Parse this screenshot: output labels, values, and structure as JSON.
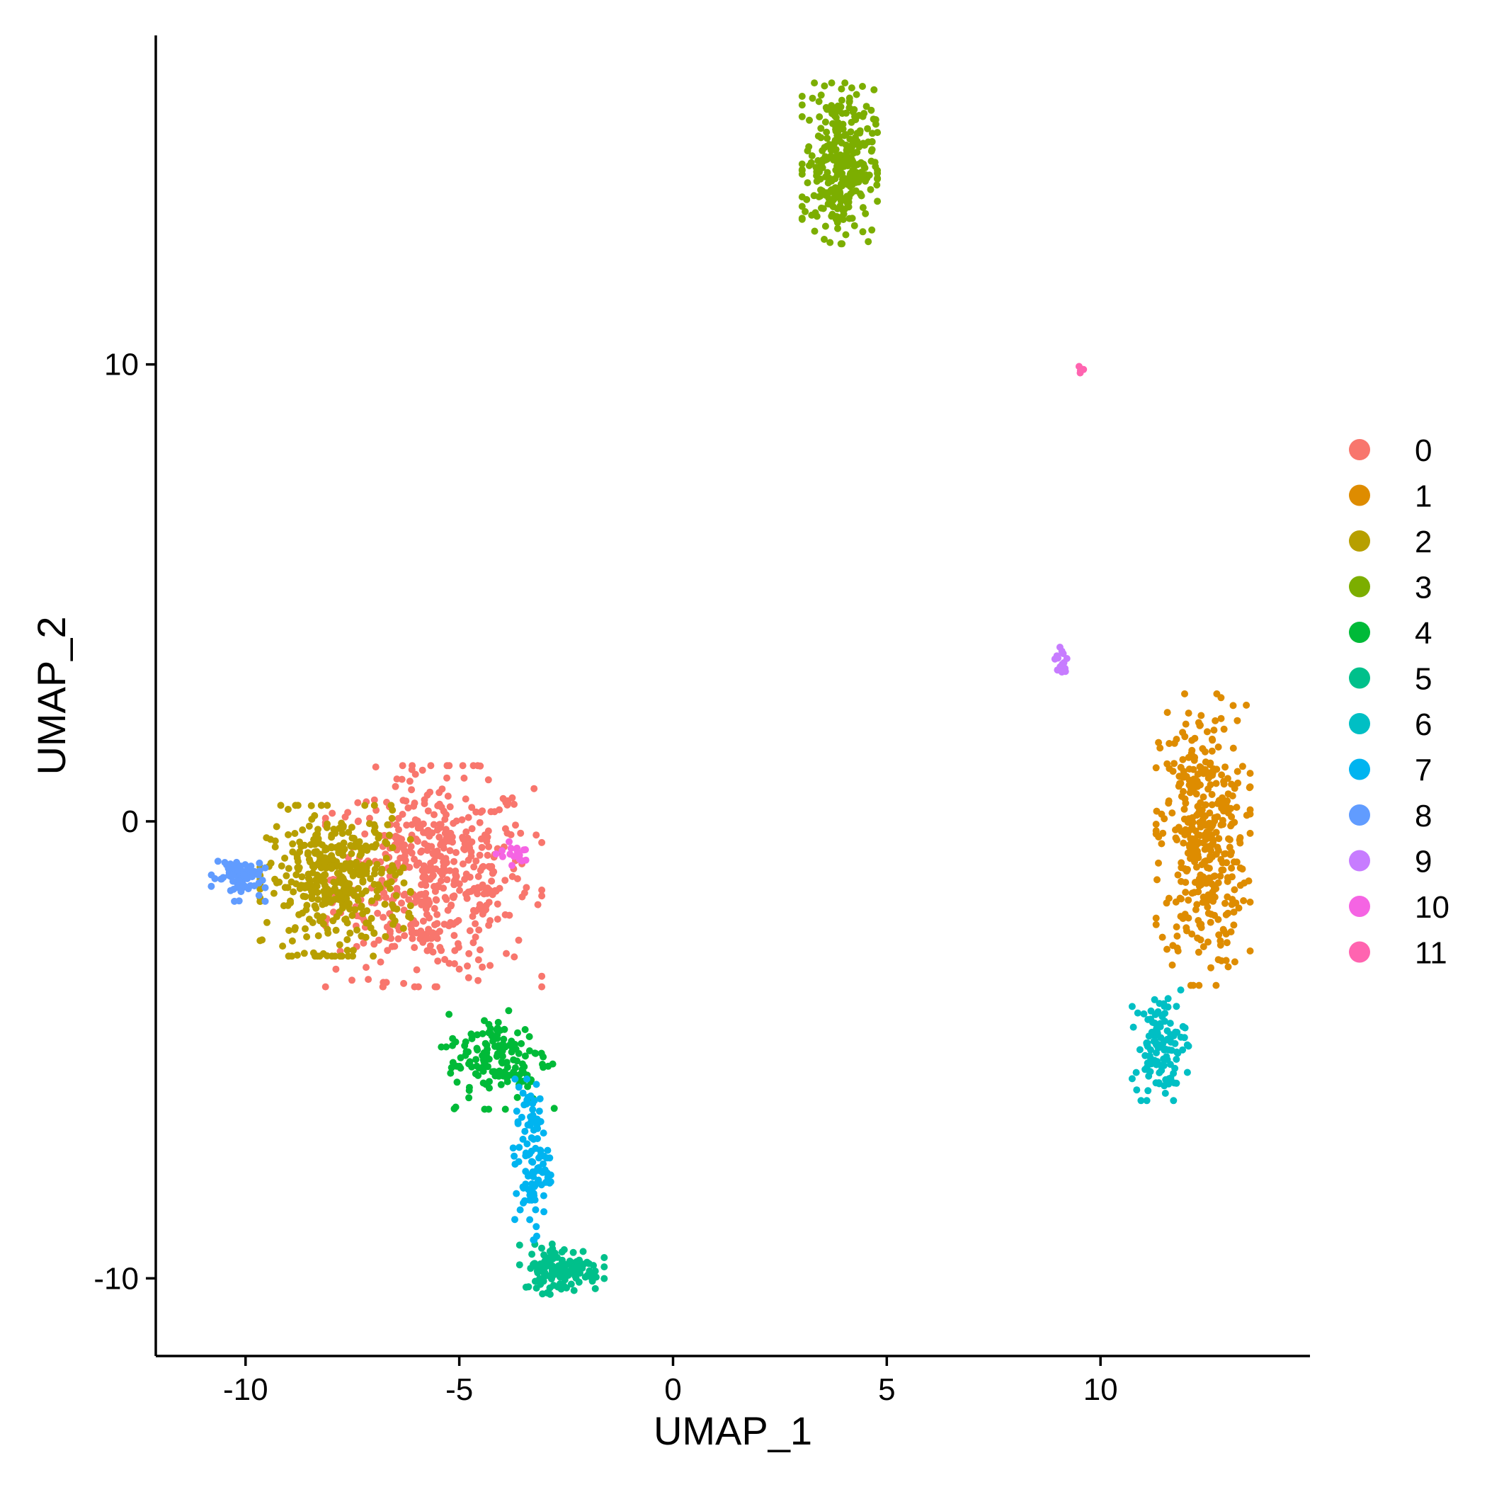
{
  "chart_data": {
    "type": "scatter",
    "xlabel": "UMAP_1",
    "ylabel": "UMAP_2",
    "xlim": [
      -12.1,
      14.9
    ],
    "ylim": [
      -11.7,
      17.2
    ],
    "x_ticks": [
      -10,
      -5,
      0,
      5,
      10
    ],
    "x_tick_labels": [
      "-10",
      "-5",
      "0",
      "5",
      "10"
    ],
    "y_ticks": [
      -10,
      0,
      10
    ],
    "y_tick_labels": [
      "-10",
      "0",
      "10"
    ],
    "grid": false,
    "legend_position": "right",
    "series": [
      {
        "name": "0",
        "color": "#F8766D",
        "center": [
          -5.6,
          -1.2
        ],
        "spread": [
          1.15,
          1.1
        ],
        "count": 520
      },
      {
        "name": "1",
        "color": "#DE8C00",
        "center": [
          12.4,
          -0.4
        ],
        "spread": [
          0.5,
          1.45
        ],
        "count": 400
      },
      {
        "name": "2",
        "color": "#B79F00",
        "center": [
          -7.9,
          -1.3
        ],
        "spread": [
          0.8,
          0.75
        ],
        "count": 400
      },
      {
        "name": "3",
        "color": "#7CAE00",
        "center": [
          3.9,
          14.4
        ],
        "spread": [
          0.4,
          0.8
        ],
        "count": 320
      },
      {
        "name": "4",
        "color": "#00BA38",
        "center": [
          -4.1,
          -5.2
        ],
        "spread": [
          0.6,
          0.5
        ],
        "count": 150
      },
      {
        "name": "5",
        "color": "#00C08B",
        "center": [
          -2.6,
          -9.8
        ],
        "spread": [
          0.45,
          0.25
        ],
        "count": 130
      },
      {
        "name": "6",
        "color": "#00BFC4",
        "center": [
          11.4,
          -4.9
        ],
        "spread": [
          0.3,
          0.55
        ],
        "count": 120
      },
      {
        "name": "7",
        "color": "#00B4F0",
        "center": [
          -3.3,
          -7.4
        ],
        "spread": [
          0.2,
          0.8
        ],
        "count": 110
      },
      {
        "name": "8",
        "color": "#619CFF",
        "center": [
          -10.2,
          -1.2
        ],
        "spread": [
          0.3,
          0.25
        ],
        "count": 70
      },
      {
        "name": "9",
        "color": "#C77CFF",
        "center": [
          9.1,
          3.5
        ],
        "spread": [
          0.12,
          0.2
        ],
        "count": 14
      },
      {
        "name": "10",
        "color": "#F564E3",
        "center": [
          -3.7,
          -0.7
        ],
        "spread": [
          0.2,
          0.12
        ],
        "count": 18
      },
      {
        "name": "11",
        "color": "#FF64B0",
        "center": [
          9.55,
          9.9
        ],
        "spread": [
          0.03,
          0.04
        ],
        "count": 5
      }
    ]
  }
}
